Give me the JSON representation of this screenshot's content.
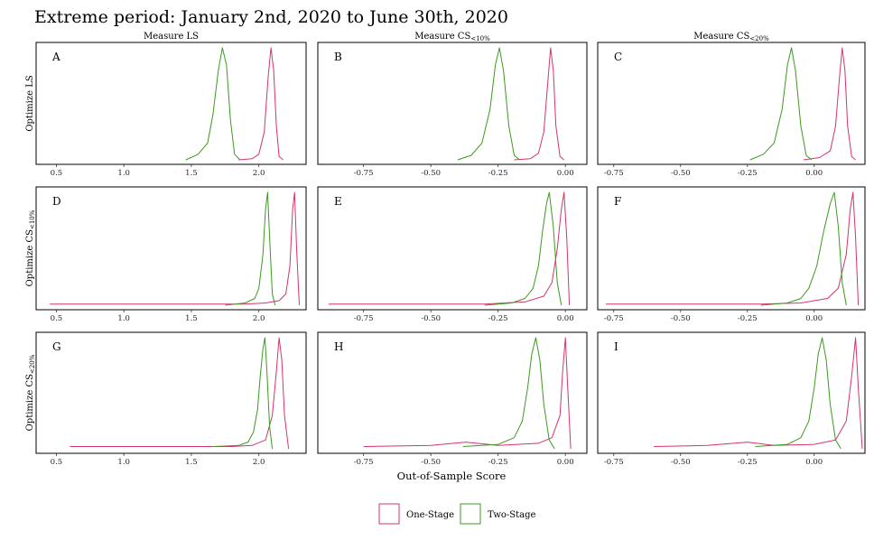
{
  "title": "Extreme period: January 2nd, 2020 to June 30th, 2020",
  "column_titles": [
    {
      "base": "Measure LS",
      "sub": ""
    },
    {
      "base": "Measure CS",
      "sub": "<10%"
    },
    {
      "base": "Measure CS",
      "sub": "<20%"
    }
  ],
  "row_titles": [
    {
      "base": "Optimize LS",
      "sub": ""
    },
    {
      "base": "Optimize CS",
      "sub": "<10%"
    },
    {
      "base": "Optimize CS",
      "sub": "<20%"
    }
  ],
  "xlabel": "Out-of-Sample Score",
  "legend": [
    {
      "label": "One-Stage",
      "color": "#d6336c"
    },
    {
      "label": "Two-Stage",
      "color": "#3a9a1e"
    }
  ],
  "colors": {
    "one_stage": "#d6336c",
    "two_stage": "#3a9a1e"
  },
  "chart_data": [
    {
      "type": "line",
      "panel": "A",
      "row": 0,
      "col": 0,
      "xlim": [
        0.35,
        2.35
      ],
      "xticks": [
        0.5,
        1.0,
        1.5,
        2.0
      ],
      "xtick_labels": [
        "0.5",
        "1.0",
        "1.5",
        "2.0"
      ],
      "series": [
        {
          "name": "One-Stage",
          "x": [
            1.85,
            1.95,
            2.0,
            2.04,
            2.07,
            2.09,
            2.11,
            2.13,
            2.15,
            2.18
          ],
          "y": [
            0.0,
            0.01,
            0.05,
            0.25,
            0.75,
            1.0,
            0.8,
            0.3,
            0.03,
            0.0
          ]
        },
        {
          "name": "Two-Stage",
          "x": [
            1.46,
            1.55,
            1.62,
            1.66,
            1.7,
            1.73,
            1.76,
            1.79,
            1.82,
            1.86
          ],
          "y": [
            0.0,
            0.05,
            0.15,
            0.4,
            0.8,
            1.0,
            0.85,
            0.35,
            0.05,
            0.0
          ]
        }
      ]
    },
    {
      "type": "line",
      "panel": "B",
      "row": 0,
      "col": 1,
      "xlim": [
        -0.92,
        0.08
      ],
      "xticks": [
        -0.75,
        -0.5,
        -0.25,
        0.0
      ],
      "xtick_labels": [
        "-0.75",
        "-0.50",
        "-0.25",
        "0.00"
      ],
      "series": [
        {
          "name": "One-Stage",
          "x": [
            -0.19,
            -0.13,
            -0.1,
            -0.08,
            -0.065,
            -0.055,
            -0.045,
            -0.035,
            -0.02,
            -0.005
          ],
          "y": [
            0.0,
            0.01,
            0.06,
            0.25,
            0.7,
            1.0,
            0.8,
            0.3,
            0.03,
            0.0
          ]
        },
        {
          "name": "Two-Stage",
          "x": [
            -0.4,
            -0.35,
            -0.31,
            -0.28,
            -0.26,
            -0.245,
            -0.23,
            -0.21,
            -0.19,
            -0.17
          ],
          "y": [
            0.0,
            0.04,
            0.15,
            0.45,
            0.85,
            1.0,
            0.8,
            0.3,
            0.04,
            0.0
          ]
        }
      ]
    },
    {
      "type": "line",
      "panel": "C",
      "row": 0,
      "col": 2,
      "xlim": [
        -0.81,
        0.19
      ],
      "xticks": [
        -0.75,
        -0.5,
        -0.25,
        0.0
      ],
      "xtick_labels": [
        "-0.75",
        "-0.50",
        "-0.25",
        "0.00"
      ],
      "series": [
        {
          "name": "One-Stage",
          "x": [
            -0.04,
            0.02,
            0.06,
            0.08,
            0.095,
            0.105,
            0.115,
            0.125,
            0.14,
            0.155
          ],
          "y": [
            0.0,
            0.02,
            0.08,
            0.3,
            0.75,
            1.0,
            0.8,
            0.3,
            0.03,
            0.0
          ]
        },
        {
          "name": "Two-Stage",
          "x": [
            -0.24,
            -0.19,
            -0.15,
            -0.12,
            -0.1,
            -0.085,
            -0.07,
            -0.05,
            -0.03,
            -0.01
          ],
          "y": [
            0.0,
            0.05,
            0.15,
            0.45,
            0.85,
            1.0,
            0.8,
            0.3,
            0.04,
            0.0
          ]
        }
      ]
    },
    {
      "type": "line",
      "panel": "D",
      "row": 1,
      "col": 0,
      "xlim": [
        0.35,
        2.35
      ],
      "xticks": [
        0.5,
        1.0,
        1.5,
        2.0
      ],
      "xtick_labels": [
        "0.5",
        "1.0",
        "1.5",
        "2.0"
      ],
      "series": [
        {
          "name": "One-Stage",
          "x": [
            0.45,
            1.0,
            1.5,
            1.9,
            2.05,
            2.15,
            2.2,
            2.23,
            2.25,
            2.265,
            2.28,
            2.3
          ],
          "y": [
            0.01,
            0.01,
            0.01,
            0.01,
            0.02,
            0.04,
            0.1,
            0.35,
            0.85,
            1.0,
            0.5,
            0.0
          ]
        },
        {
          "name": "Two-Stage",
          "x": [
            1.75,
            1.9,
            1.97,
            2.0,
            2.03,
            2.05,
            2.065,
            2.08,
            2.1,
            2.12
          ],
          "y": [
            0.0,
            0.02,
            0.06,
            0.15,
            0.45,
            0.85,
            1.0,
            0.6,
            0.1,
            0.0
          ]
        }
      ]
    },
    {
      "type": "line",
      "panel": "E",
      "row": 1,
      "col": 1,
      "xlim": [
        -0.92,
        0.08
      ],
      "xticks": [
        -0.75,
        -0.5,
        -0.25,
        0.0
      ],
      "xtick_labels": [
        "-0.75",
        "-0.50",
        "-0.25",
        "0.00"
      ],
      "series": [
        {
          "name": "One-Stage",
          "x": [
            -0.88,
            -0.6,
            -0.3,
            -0.15,
            -0.08,
            -0.05,
            -0.03,
            -0.015,
            -0.005,
            0.005,
            0.015
          ],
          "y": [
            0.01,
            0.01,
            0.01,
            0.03,
            0.08,
            0.2,
            0.5,
            0.85,
            1.0,
            0.6,
            0.0
          ]
        },
        {
          "name": "Two-Stage",
          "x": [
            -0.3,
            -0.2,
            -0.15,
            -0.12,
            -0.1,
            -0.085,
            -0.07,
            -0.06,
            -0.045,
            -0.03,
            -0.015
          ],
          "y": [
            0.0,
            0.02,
            0.06,
            0.15,
            0.35,
            0.65,
            0.9,
            1.0,
            0.7,
            0.2,
            0.0
          ]
        }
      ]
    },
    {
      "type": "line",
      "panel": "F",
      "row": 1,
      "col": 2,
      "xlim": [
        -0.81,
        0.19
      ],
      "xticks": [
        -0.75,
        -0.5,
        -0.25,
        0.0
      ],
      "xtick_labels": [
        "-0.75",
        "-0.50",
        "-0.25",
        "0.00"
      ],
      "series": [
        {
          "name": "One-Stage",
          "x": [
            -0.78,
            -0.5,
            -0.2,
            -0.05,
            0.05,
            0.09,
            0.12,
            0.135,
            0.145,
            0.155,
            0.165
          ],
          "y": [
            0.01,
            0.01,
            0.01,
            0.02,
            0.06,
            0.15,
            0.45,
            0.85,
            1.0,
            0.6,
            0.0
          ]
        },
        {
          "name": "Two-Stage",
          "x": [
            -0.2,
            -0.1,
            -0.05,
            -0.02,
            0.01,
            0.035,
            0.06,
            0.075,
            0.09,
            0.105,
            0.12
          ],
          "y": [
            0.0,
            0.02,
            0.06,
            0.15,
            0.35,
            0.65,
            0.9,
            1.0,
            0.7,
            0.2,
            0.0
          ]
        }
      ]
    },
    {
      "type": "line",
      "panel": "G",
      "row": 2,
      "col": 0,
      "xlim": [
        0.35,
        2.35
      ],
      "xticks": [
        0.5,
        1.0,
        1.5,
        2.0
      ],
      "xtick_labels": [
        "0.5",
        "1.0",
        "1.5",
        "2.0"
      ],
      "series": [
        {
          "name": "One-Stage",
          "x": [
            0.6,
            1.0,
            1.5,
            1.8,
            1.95,
            2.05,
            2.1,
            2.13,
            2.15,
            2.17,
            2.19,
            2.22
          ],
          "y": [
            0.02,
            0.02,
            0.02,
            0.02,
            0.03,
            0.08,
            0.3,
            0.7,
            1.0,
            0.8,
            0.3,
            0.0
          ]
        },
        {
          "name": "Two-Stage",
          "x": [
            1.66,
            1.85,
            1.92,
            1.96,
            1.99,
            2.01,
            2.03,
            2.045,
            2.06,
            2.08,
            2.1
          ],
          "y": [
            0.02,
            0.03,
            0.06,
            0.15,
            0.35,
            0.65,
            0.9,
            1.0,
            0.7,
            0.2,
            0.0
          ]
        }
      ]
    },
    {
      "type": "line",
      "panel": "H",
      "row": 2,
      "col": 1,
      "xlim": [
        -0.92,
        0.08
      ],
      "xticks": [
        -0.75,
        -0.5,
        -0.25,
        0.0
      ],
      "xtick_labels": [
        "-0.75",
        "-0.50",
        "-0.25",
        "0.00"
      ],
      "series": [
        {
          "name": "One-Stage",
          "x": [
            -0.75,
            -0.5,
            -0.37,
            -0.25,
            -0.1,
            -0.05,
            -0.02,
            -0.01,
            0.0,
            0.008,
            0.02
          ],
          "y": [
            0.02,
            0.03,
            0.06,
            0.03,
            0.05,
            0.1,
            0.3,
            0.7,
            1.0,
            0.6,
            0.0
          ]
        },
        {
          "name": "Two-Stage",
          "x": [
            -0.38,
            -0.25,
            -0.19,
            -0.16,
            -0.14,
            -0.125,
            -0.11,
            -0.095,
            -0.08,
            -0.06,
            -0.04
          ],
          "y": [
            0.02,
            0.04,
            0.1,
            0.25,
            0.55,
            0.85,
            1.0,
            0.8,
            0.4,
            0.08,
            0.0
          ]
        }
      ]
    },
    {
      "type": "line",
      "panel": "I",
      "row": 2,
      "col": 2,
      "xlim": [
        -0.81,
        0.19
      ],
      "xticks": [
        -0.75,
        -0.5,
        -0.25,
        0.0
      ],
      "xtick_labels": [
        "-0.75",
        "-0.50",
        "-0.25",
        "0.00"
      ],
      "series": [
        {
          "name": "One-Stage",
          "x": [
            -0.6,
            -0.4,
            -0.25,
            -0.15,
            0.0,
            0.08,
            0.12,
            0.14,
            0.155,
            0.165,
            0.18
          ],
          "y": [
            0.02,
            0.03,
            0.06,
            0.03,
            0.04,
            0.08,
            0.25,
            0.65,
            1.0,
            0.55,
            0.0
          ]
        },
        {
          "name": "Two-Stage",
          "x": [
            -0.22,
            -0.1,
            -0.05,
            -0.02,
            0.0,
            0.015,
            0.03,
            0.045,
            0.06,
            0.08,
            0.1
          ],
          "y": [
            0.02,
            0.04,
            0.1,
            0.25,
            0.55,
            0.85,
            1.0,
            0.8,
            0.4,
            0.08,
            0.0
          ]
        }
      ]
    }
  ]
}
